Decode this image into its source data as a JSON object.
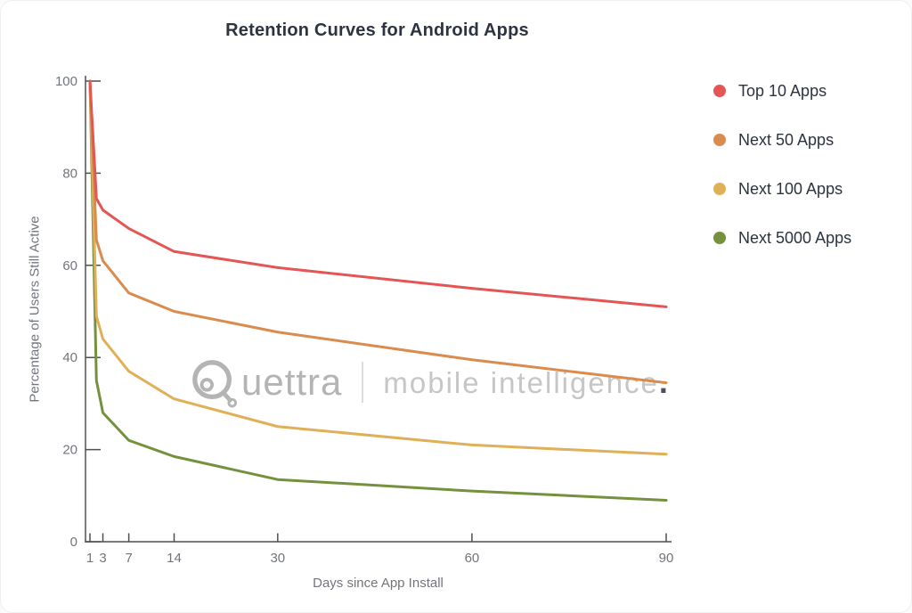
{
  "page_title": "Retention Curves for Android Apps",
  "colors": {
    "title_text": "#2d3440",
    "legend_text": "#2b3240",
    "axis_line": "#4f4f4f",
    "tick_text": "#71757c",
    "watermark_gray": "#b4b4b4"
  },
  "watermark": {
    "brand": "Quettra",
    "brand_rest": "uettra",
    "tagline": "mobile intelligence",
    "dot": "."
  },
  "chart_data": {
    "type": "line",
    "title": "Retention Curves for Android Apps",
    "xlabel": "Days since App Install",
    "ylabel": "Percentage of Users Still Active",
    "xlim": [
      1,
      90
    ],
    "ylim": [
      0,
      100
    ],
    "grid": false,
    "legend_position": "right",
    "x_ticks": [
      1,
      3,
      7,
      14,
      30,
      60,
      90
    ],
    "y_ticks": [
      0,
      20,
      40,
      60,
      80,
      100
    ],
    "x": [
      1,
      2,
      3,
      7,
      14,
      30,
      60,
      90
    ],
    "series": [
      {
        "name": "Top 10 Apps",
        "color": "#e35654",
        "values": [
          100,
          74.5,
          72,
          68,
          63,
          59.5,
          55,
          51
        ]
      },
      {
        "name": "Next 50 Apps",
        "color": "#da8c4e",
        "values": [
          100,
          65.5,
          61,
          54,
          50,
          45.5,
          39.5,
          34.5
        ]
      },
      {
        "name": "Next 100 Apps",
        "color": "#dfb058",
        "values": [
          100,
          49,
          44,
          37,
          31,
          25,
          21,
          19
        ]
      },
      {
        "name": "Next 5000 Apps",
        "color": "#75913e",
        "values": [
          100,
          35,
          28,
          22,
          18.5,
          13.5,
          11,
          9
        ]
      }
    ]
  }
}
